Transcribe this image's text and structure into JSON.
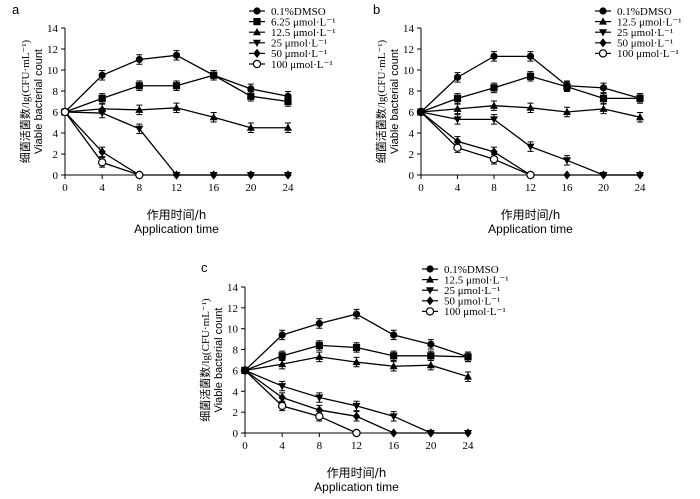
{
  "chart_data": [
    {
      "type": "line",
      "panel_label": "a",
      "xlabel_cn": "作用时间/h",
      "xlabel_en": "Application time",
      "ylabel_cn": "细菌活菌数/lg(CFU·mL⁻¹)",
      "ylabel_en": "Viable bacterial count",
      "xlim": [
        0,
        24
      ],
      "ylim": [
        0,
        14
      ],
      "xticks": [
        "0",
        "4",
        "8",
        "12",
        "16",
        "20",
        "24"
      ],
      "yticks": [
        "0",
        "2",
        "4",
        "6",
        "8",
        "10",
        "12",
        "14"
      ],
      "x": [
        0,
        4,
        8,
        12,
        16,
        20,
        24
      ],
      "series": [
        {
          "name": "0.1%DMSO",
          "marker": "circle",
          "values": [
            6,
            9.5,
            11.0,
            11.4,
            9.5,
            8.2,
            7.5
          ]
        },
        {
          "name": "6.25 μmol·L⁻¹",
          "marker": "square",
          "values": [
            6,
            7.3,
            8.5,
            8.5,
            9.5,
            7.5,
            7.0
          ]
        },
        {
          "name": "12.5 μmol·L⁻¹",
          "marker": "triangle-up",
          "values": [
            6,
            6.3,
            6.2,
            6.4,
            5.5,
            4.5,
            4.5
          ]
        },
        {
          "name": "25 μmol·L⁻¹",
          "marker": "triangle-down",
          "values": [
            6,
            5.9,
            4.4,
            0,
            0,
            0,
            0
          ]
        },
        {
          "name": "50 μmol·L⁻¹",
          "marker": "diamond",
          "values": [
            6,
            2.2,
            0,
            0,
            0,
            0,
            0
          ]
        },
        {
          "name": "100 μmol·L⁻¹",
          "marker": "open-circle",
          "values": [
            6,
            1.2,
            0,
            null,
            null,
            null,
            null
          ]
        }
      ]
    },
    {
      "type": "line",
      "panel_label": "b",
      "xlabel_cn": "作用时间/h",
      "xlabel_en": "Application time",
      "ylabel_cn": "细菌活菌数/lg(CFU·mL⁻¹)",
      "ylabel_en": "Viable bacterial count",
      "xlim": [
        0,
        24
      ],
      "ylim": [
        0,
        14
      ],
      "xticks": [
        "0",
        "4",
        "8",
        "12",
        "16",
        "20",
        "24"
      ],
      "yticks": [
        "0",
        "2",
        "4",
        "6",
        "8",
        "10",
        "12",
        "14"
      ],
      "x": [
        0,
        4,
        8,
        12,
        16,
        20,
        24
      ],
      "series": [
        {
          "name": "0.1%DMSO",
          "marker": "circle",
          "values": [
            6,
            9.3,
            11.3,
            11.3,
            8.5,
            8.3,
            7.3
          ]
        },
        {
          "name": "12.5 μmol·L⁻¹",
          "marker": "triangle-up",
          "values": [
            6,
            6.3,
            6.6,
            6.4,
            6.0,
            6.3,
            5.5
          ]
        },
        {
          "name": "25 μmol·L⁻¹",
          "marker": "triangle-down",
          "values": [
            6,
            5.3,
            5.3,
            2.7,
            1.4,
            0,
            0
          ]
        },
        {
          "name": "50 μmol·L⁻¹",
          "marker": "diamond",
          "values": [
            6,
            3.2,
            2.2,
            0,
            0,
            0,
            0
          ]
        },
        {
          "name": "100 μmol·L⁻¹",
          "marker": "open-circle",
          "values": [
            6,
            2.6,
            1.5,
            0,
            null,
            null,
            null
          ]
        },
        {
          "name": "",
          "marker": "square",
          "values": [
            6,
            7.3,
            8.3,
            9.4,
            8.4,
            7.3,
            7.3
          ]
        }
      ]
    },
    {
      "type": "line",
      "panel_label": "c",
      "xlabel_cn": "作用时间/h",
      "xlabel_en": "Application time",
      "ylabel_cn": "细菌活菌数/lg(CFU·mL⁻¹)",
      "ylabel_en": "Viable bacterial count",
      "xlim": [
        0,
        24
      ],
      "ylim": [
        0,
        14
      ],
      "xticks": [
        "0",
        "4",
        "8",
        "12",
        "16",
        "20",
        "24"
      ],
      "yticks": [
        "0",
        "2",
        "4",
        "6",
        "8",
        "10",
        "12",
        "14"
      ],
      "x": [
        0,
        4,
        8,
        12,
        16,
        20,
        24
      ],
      "series": [
        {
          "name": "0.1%DMSO",
          "marker": "circle",
          "values": [
            6,
            9.4,
            10.5,
            11.4,
            9.4,
            8.5,
            7.3
          ]
        },
        {
          "name": "12.5 μmol·L⁻¹",
          "marker": "triangle-up",
          "values": [
            6,
            6.6,
            7.3,
            6.8,
            6.4,
            6.5,
            5.4
          ]
        },
        {
          "name": "25 μmol·L⁻¹",
          "marker": "triangle-down",
          "values": [
            6,
            4.5,
            3.4,
            2.6,
            1.6,
            0,
            0
          ]
        },
        {
          "name": "50 μmol·L⁻¹",
          "marker": "diamond",
          "values": [
            6,
            3.4,
            2.2,
            1.6,
            0,
            0,
            0
          ]
        },
        {
          "name": "100 μmol·L⁻¹",
          "marker": "open-circle",
          "values": [
            6,
            2.6,
            1.6,
            0,
            null,
            null,
            null
          ]
        },
        {
          "name": "",
          "marker": "square",
          "values": [
            6,
            7.4,
            8.4,
            8.2,
            7.4,
            7.4,
            7.3
          ]
        }
      ]
    }
  ]
}
